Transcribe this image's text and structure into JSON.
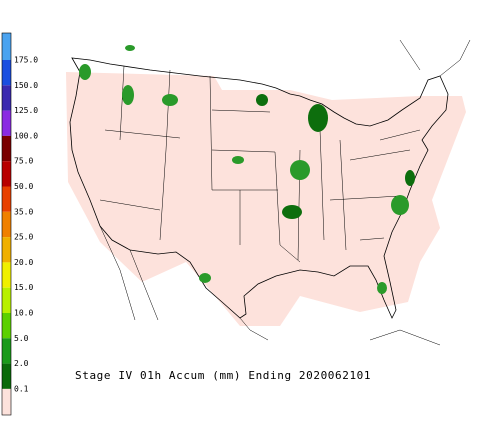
{
  "title": "Stage IV 01h Accum (mm) Ending 2020062101",
  "legend": {
    "labels": [
      "175.0",
      "150.0",
      "125.0",
      "100.0",
      "75.0",
      "50.0",
      "35.0",
      "25.0",
      "20.0",
      "15.0",
      "10.0",
      "5.0",
      "2.0",
      "0.1"
    ],
    "colors": [
      "#4aa3f0",
      "#1a4ee0",
      "#3a2ab0",
      "#8a2be2",
      "#7a0000",
      "#b80000",
      "#e84000",
      "#f08000",
      "#f0b000",
      "#f0f000",
      "#b8f000",
      "#5cd000",
      "#1a9a1a",
      "#0a6a0a",
      "#fde2dc"
    ]
  }
}
